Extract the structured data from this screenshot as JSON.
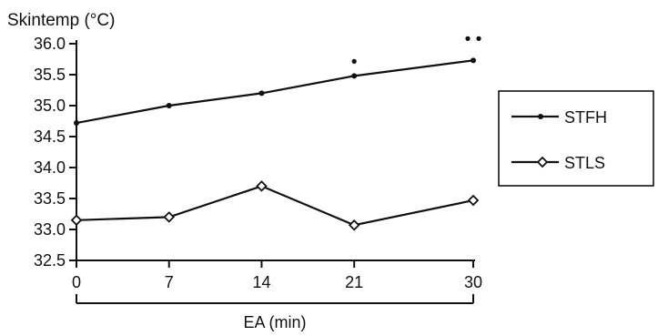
{
  "chart_data": {
    "type": "line",
    "ylabel": "Skintemp (°C)",
    "xlabel": "EA (min)",
    "x": [
      0,
      7,
      14,
      21,
      30
    ],
    "x_tick_labels": [
      "0",
      "7",
      "14",
      "21",
      "30"
    ],
    "y_ticks": [
      32.5,
      33.0,
      33.5,
      34.0,
      34.5,
      35.0,
      35.5,
      36.0
    ],
    "y_tick_labels": [
      "32.5",
      "33.0",
      "33.5",
      "34.0",
      "34.5",
      "35.0",
      "35.5",
      "36.0"
    ],
    "ylim": [
      32.5,
      36.0
    ],
    "xlim": [
      0,
      30
    ],
    "series": [
      {
        "name": "STFH",
        "marker": "dot",
        "values": [
          34.72,
          35.0,
          35.2,
          35.48,
          35.73
        ]
      },
      {
        "name": "STLS",
        "marker": "diamond",
        "values": [
          33.15,
          33.2,
          33.7,
          33.07,
          33.47
        ]
      }
    ],
    "annotations": [
      {
        "x": 21,
        "marks": "•"
      },
      {
        "x": 30,
        "marks": "••"
      }
    ],
    "legend_position": "right",
    "grid": false
  }
}
